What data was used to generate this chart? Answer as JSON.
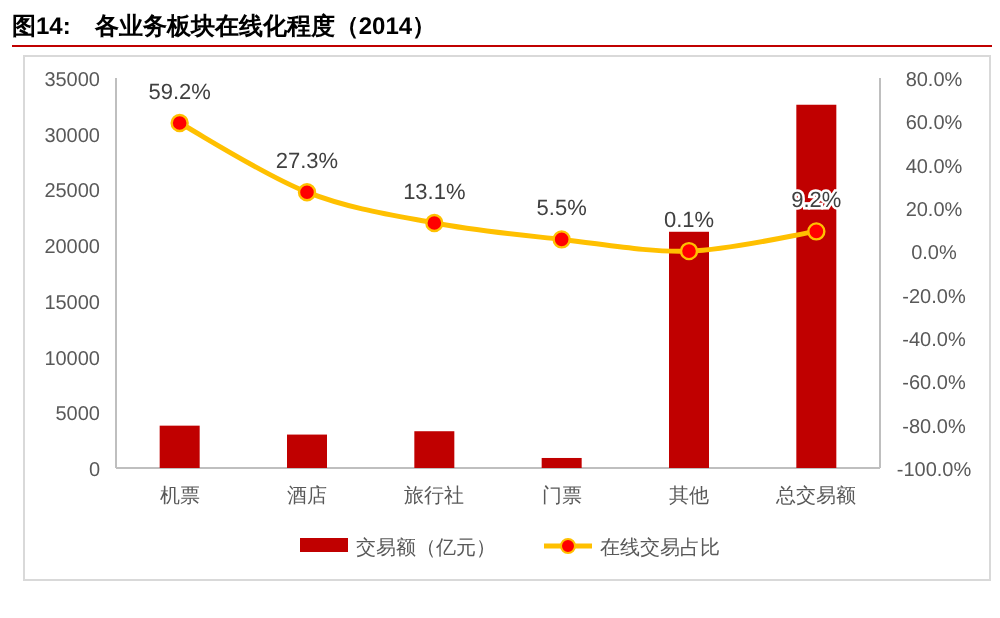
{
  "chart_data": {
    "type": "bar",
    "title": "图14:　各业务板块在线化程度（2014）",
    "categories": [
      "机票",
      "酒店",
      "旅行社",
      "门票",
      "其他",
      "总交易额"
    ],
    "series": [
      {
        "name": "交易额（亿元）",
        "color": "#c00000",
        "values": [
          3800,
          3000,
          3300,
          900,
          21200,
          32600
        ]
      },
      {
        "name": "在线交易占比",
        "type": "line",
        "axis": "y2",
        "color": "#ffc000",
        "marker": "circle",
        "values": [
          59.2,
          27.3,
          13.1,
          5.5,
          0.1,
          9.2
        ],
        "value_labels": [
          "59.2%",
          "27.3%",
          "13.1%",
          "5.5%",
          "0.1%",
          "9.2%"
        ]
      }
    ],
    "ylim": [
      0,
      35000
    ],
    "yticks": [
      0,
      5000,
      10000,
      15000,
      20000,
      25000,
      30000,
      35000
    ],
    "y2lim": [
      -100,
      80
    ],
    "y2ticks": [
      {
        "value": 80,
        "label": "80.0%"
      },
      {
        "value": 60,
        "label": "60.0%"
      },
      {
        "value": 40,
        "label": "40.0%"
      },
      {
        "value": 20,
        "label": "20.0%"
      },
      {
        "value": 0,
        "label": "0.0%"
      },
      {
        "value": -20,
        "label": "-20.0%"
      },
      {
        "value": -40,
        "label": "-40.0%"
      },
      {
        "value": -60,
        "label": "-60.0%"
      },
      {
        "value": -80,
        "label": "-80.0%"
      },
      {
        "value": -100,
        "label": "-100.0%"
      }
    ],
    "grid": false,
    "legend": "bottom"
  }
}
